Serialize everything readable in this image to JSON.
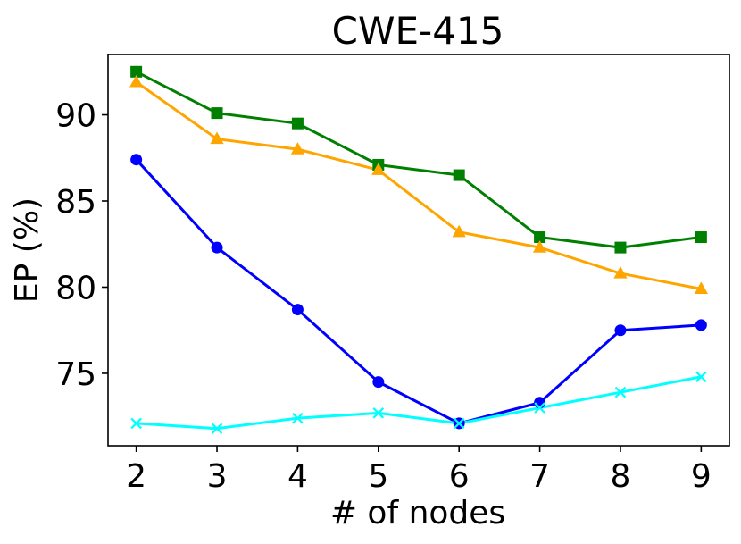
{
  "chart_data": {
    "type": "line",
    "title": "CWE-415",
    "xlabel": "# of nodes",
    "ylabel": "EP (%)",
    "x": [
      2,
      3,
      4,
      5,
      6,
      7,
      8,
      9
    ],
    "xlim": [
      1.65,
      9.35
    ],
    "ylim": [
      70.8,
      93.5
    ],
    "xticks": [
      2,
      3,
      4,
      5,
      6,
      7,
      8,
      9
    ],
    "yticks": [
      75,
      80,
      85,
      90
    ],
    "grid": false,
    "series": [
      {
        "color": "#008000",
        "marker": "square",
        "values": [
          92.5,
          90.1,
          89.5,
          87.1,
          86.5,
          82.9,
          82.3,
          82.9
        ]
      },
      {
        "color": "#FFA500",
        "marker": "triangle",
        "values": [
          91.9,
          88.6,
          88.0,
          86.8,
          83.2,
          82.3,
          80.8,
          79.9
        ]
      },
      {
        "color": "#0000FF",
        "marker": "circle",
        "values": [
          87.4,
          82.3,
          78.7,
          74.5,
          72.1,
          73.3,
          77.5,
          77.8
        ]
      },
      {
        "color": "#00FFFF",
        "marker": "x",
        "values": [
          72.1,
          71.8,
          72.4,
          72.7,
          72.1,
          73.0,
          73.9,
          74.8
        ]
      }
    ]
  }
}
